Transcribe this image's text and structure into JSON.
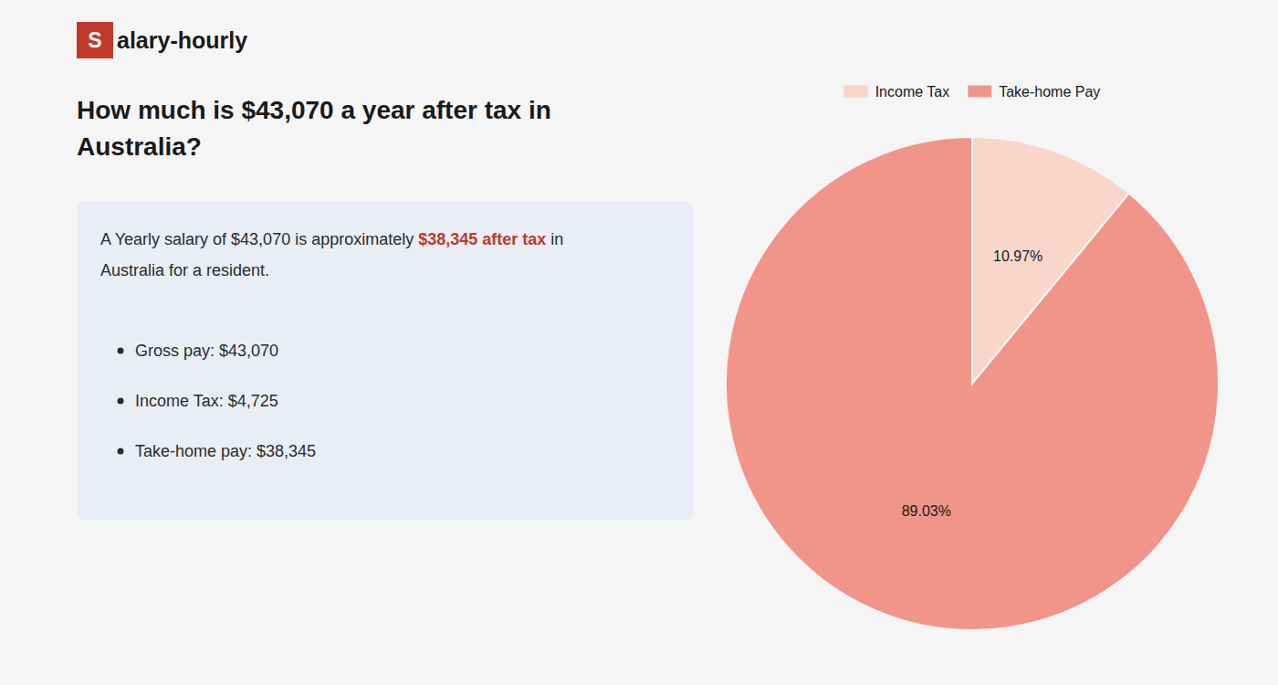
{
  "chart_data": {
    "type": "pie",
    "title": [
      "How much is $43,070 a year after tax in",
      "Australia?"
    ],
    "categories": [
      "Income Tax",
      "Take-home Pay"
    ],
    "values": [
      10.97,
      89.03
    ],
    "value_labels": [
      "10.97%",
      "89.03%"
    ],
    "colors": [
      "#f8d7ca",
      "#f1948a"
    ],
    "data_labels": true,
    "legend": "top",
    "annotations": [
      {
        "text": "S",
        "color": "#c0392b"
      },
      {
        "text": "alary-hourly"
      },
      {
        "text": "A Yearly salary of $43,070 is approximately "
      },
      {
        "text": "$38,345 after tax",
        "color": "#c0392b"
      },
      {
        "text": " in"
      },
      {
        "text": "Australia for a resident."
      },
      {
        "text": "Gross pay: $43,070"
      },
      {
        "text": "Income Tax: $4,725"
      },
      {
        "text": "Take-home pay: $38,345"
      }
    ]
  }
}
